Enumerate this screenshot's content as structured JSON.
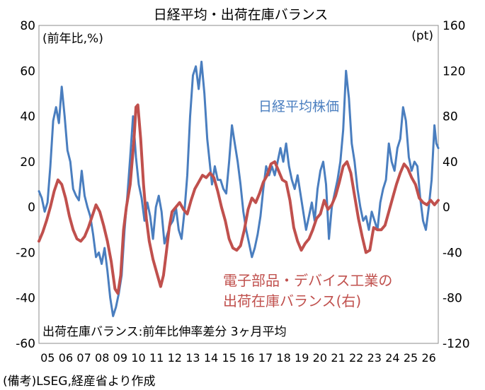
{
  "chart_data": {
    "type": "line",
    "title": "日経平均・出荷在庫バランス",
    "left_unit_label": "(前年比,%)",
    "right_unit_label": "(pt)",
    "left_axis": {
      "range": [
        -60,
        80
      ],
      "ticks": [
        "80",
        "60",
        "40",
        "20",
        "0",
        "-20",
        "-40",
        "-60"
      ]
    },
    "right_axis": {
      "range": [
        -120,
        160
      ],
      "ticks": [
        "160",
        "120",
        "80",
        "40",
        "0",
        "-40",
        "-80",
        "-120"
      ]
    },
    "x_axis": {
      "range": [
        2005,
        2026
      ],
      "ticks": [
        "05",
        "06",
        "07",
        "08",
        "09",
        "10",
        "11",
        "12",
        "13",
        "14",
        "15",
        "16",
        "17",
        "18",
        "19",
        "20",
        "21",
        "22",
        "23",
        "24",
        "25",
        "26"
      ]
    },
    "grid": false,
    "series": [
      {
        "name": "日経平均株価",
        "axis": "left",
        "color": "#4a7ebf",
        "points": [
          [
            2005.0,
            7
          ],
          [
            2005.15,
            4
          ],
          [
            2005.3,
            -2
          ],
          [
            2005.45,
            2
          ],
          [
            2005.6,
            18
          ],
          [
            2005.75,
            38
          ],
          [
            2005.9,
            44
          ],
          [
            2006.05,
            37
          ],
          [
            2006.2,
            53
          ],
          [
            2006.35,
            40
          ],
          [
            2006.5,
            25
          ],
          [
            2006.65,
            20
          ],
          [
            2006.8,
            8
          ],
          [
            2006.95,
            5
          ],
          [
            2007.1,
            3
          ],
          [
            2007.25,
            16
          ],
          [
            2007.4,
            5
          ],
          [
            2007.55,
            0
          ],
          [
            2007.7,
            -4
          ],
          [
            2007.85,
            -12
          ],
          [
            2008.0,
            -22
          ],
          [
            2008.15,
            -20
          ],
          [
            2008.3,
            -25
          ],
          [
            2008.45,
            -18
          ],
          [
            2008.6,
            -28
          ],
          [
            2008.75,
            -40
          ],
          [
            2008.9,
            -48
          ],
          [
            2009.05,
            -44
          ],
          [
            2009.2,
            -38
          ],
          [
            2009.35,
            -30
          ],
          [
            2009.5,
            -10
          ],
          [
            2009.65,
            5
          ],
          [
            2009.8,
            22
          ],
          [
            2009.95,
            40
          ],
          [
            2010.1,
            22
          ],
          [
            2010.25,
            10
          ],
          [
            2010.4,
            4
          ],
          [
            2010.55,
            -6
          ],
          [
            2010.7,
            2
          ],
          [
            2010.85,
            -4
          ],
          [
            2011.0,
            -14
          ],
          [
            2011.15,
            0
          ],
          [
            2011.3,
            5
          ],
          [
            2011.45,
            -2
          ],
          [
            2011.6,
            -16
          ],
          [
            2011.75,
            -12
          ],
          [
            2011.9,
            -8
          ],
          [
            2012.05,
            -6
          ],
          [
            2012.2,
            0
          ],
          [
            2012.35,
            -10
          ],
          [
            2012.5,
            -14
          ],
          [
            2012.65,
            -2
          ],
          [
            2012.8,
            14
          ],
          [
            2012.95,
            40
          ],
          [
            2013.1,
            58
          ],
          [
            2013.25,
            62
          ],
          [
            2013.4,
            52
          ],
          [
            2013.55,
            64
          ],
          [
            2013.7,
            50
          ],
          [
            2013.85,
            30
          ],
          [
            2013.95,
            22
          ],
          [
            2014.1,
            10
          ],
          [
            2014.25,
            18
          ],
          [
            2014.4,
            12
          ],
          [
            2014.55,
            12
          ],
          [
            2014.7,
            8
          ],
          [
            2014.85,
            6
          ],
          [
            2015.0,
            20
          ],
          [
            2015.15,
            36
          ],
          [
            2015.3,
            28
          ],
          [
            2015.45,
            20
          ],
          [
            2015.6,
            10
          ],
          [
            2015.75,
            -2
          ],
          [
            2015.9,
            -10
          ],
          [
            2016.05,
            -16
          ],
          [
            2016.2,
            -22
          ],
          [
            2016.35,
            -18
          ],
          [
            2016.5,
            -12
          ],
          [
            2016.65,
            -4
          ],
          [
            2016.8,
            8
          ],
          [
            2016.95,
            18
          ],
          [
            2017.1,
            14
          ],
          [
            2017.25,
            18
          ],
          [
            2017.4,
            14
          ],
          [
            2017.55,
            20
          ],
          [
            2017.7,
            26
          ],
          [
            2017.85,
            20
          ],
          [
            2018.0,
            28
          ],
          [
            2018.15,
            18
          ],
          [
            2018.3,
            12
          ],
          [
            2018.45,
            8
          ],
          [
            2018.6,
            14
          ],
          [
            2018.75,
            6
          ],
          [
            2018.9,
            -2
          ],
          [
            2019.05,
            -10
          ],
          [
            2019.2,
            -4
          ],
          [
            2019.35,
            2
          ],
          [
            2019.5,
            -6
          ],
          [
            2019.65,
            8
          ],
          [
            2019.8,
            16
          ],
          [
            2019.95,
            20
          ],
          [
            2020.1,
            10
          ],
          [
            2020.25,
            -14
          ],
          [
            2020.4,
            0
          ],
          [
            2020.55,
            6
          ],
          [
            2020.7,
            12
          ],
          [
            2020.85,
            20
          ],
          [
            2021.0,
            34
          ],
          [
            2021.15,
            60
          ],
          [
            2021.3,
            48
          ],
          [
            2021.45,
            28
          ],
          [
            2021.6,
            20
          ],
          [
            2021.75,
            8
          ],
          [
            2021.9,
            0
          ],
          [
            2022.05,
            -6
          ],
          [
            2022.2,
            -4
          ],
          [
            2022.35,
            -10
          ],
          [
            2022.5,
            -2
          ],
          [
            2022.65,
            -6
          ],
          [
            2022.8,
            -10
          ],
          [
            2022.95,
            2
          ],
          [
            2023.1,
            8
          ],
          [
            2023.25,
            12
          ],
          [
            2023.4,
            28
          ],
          [
            2023.55,
            20
          ],
          [
            2023.7,
            16
          ],
          [
            2023.85,
            26
          ],
          [
            2024.0,
            30
          ],
          [
            2024.15,
            44
          ],
          [
            2024.3,
            38
          ],
          [
            2024.45,
            22
          ],
          [
            2024.6,
            16
          ],
          [
            2024.75,
            20
          ],
          [
            2024.9,
            18
          ],
          [
            2025.05,
            4
          ],
          [
            2025.2,
            -6
          ],
          [
            2025.35,
            -10
          ],
          [
            2025.5,
            0
          ],
          [
            2025.65,
            12
          ],
          [
            2025.8,
            36
          ],
          [
            2025.9,
            28
          ],
          [
            2026.0,
            26
          ]
        ]
      },
      {
        "name": "電子部品・デバイス工業の出荷在庫バランス(右)",
        "axis": "right",
        "color": "#c0504d",
        "points": [
          [
            2005.0,
            -30
          ],
          [
            2005.2,
            -22
          ],
          [
            2005.4,
            -12
          ],
          [
            2005.6,
            0
          ],
          [
            2005.8,
            14
          ],
          [
            2006.0,
            24
          ],
          [
            2006.2,
            20
          ],
          [
            2006.4,
            8
          ],
          [
            2006.6,
            -8
          ],
          [
            2006.8,
            -20
          ],
          [
            2007.0,
            -28
          ],
          [
            2007.2,
            -30
          ],
          [
            2007.4,
            -26
          ],
          [
            2007.6,
            -18
          ],
          [
            2007.8,
            -8
          ],
          [
            2008.0,
            2
          ],
          [
            2008.2,
            -4
          ],
          [
            2008.4,
            -16
          ],
          [
            2008.6,
            -30
          ],
          [
            2008.8,
            -48
          ],
          [
            2009.0,
            -72
          ],
          [
            2009.15,
            -76
          ],
          [
            2009.3,
            -60
          ],
          [
            2009.45,
            -20
          ],
          [
            2009.6,
            0
          ],
          [
            2009.8,
            20
          ],
          [
            2010.0,
            60
          ],
          [
            2010.1,
            88
          ],
          [
            2010.2,
            90
          ],
          [
            2010.35,
            60
          ],
          [
            2010.5,
            20
          ],
          [
            2010.65,
            -10
          ],
          [
            2010.8,
            -30
          ],
          [
            2011.0,
            -46
          ],
          [
            2011.2,
            -58
          ],
          [
            2011.4,
            -70
          ],
          [
            2011.55,
            -60
          ],
          [
            2011.7,
            -40
          ],
          [
            2011.85,
            -18
          ],
          [
            2012.0,
            -4
          ],
          [
            2012.2,
            0
          ],
          [
            2012.4,
            4
          ],
          [
            2012.6,
            -2
          ],
          [
            2012.8,
            -6
          ],
          [
            2013.0,
            6
          ],
          [
            2013.2,
            16
          ],
          [
            2013.4,
            22
          ],
          [
            2013.6,
            28
          ],
          [
            2013.8,
            26
          ],
          [
            2014.0,
            30
          ],
          [
            2014.2,
            26
          ],
          [
            2014.4,
            14
          ],
          [
            2014.6,
            0
          ],
          [
            2014.8,
            -12
          ],
          [
            2015.0,
            -28
          ],
          [
            2015.2,
            -36
          ],
          [
            2015.4,
            -38
          ],
          [
            2015.6,
            -34
          ],
          [
            2015.8,
            -20
          ],
          [
            2016.0,
            -2
          ],
          [
            2016.2,
            8
          ],
          [
            2016.4,
            4
          ],
          [
            2016.6,
            12
          ],
          [
            2016.8,
            22
          ],
          [
            2017.0,
            28
          ],
          [
            2017.2,
            38
          ],
          [
            2017.4,
            40
          ],
          [
            2017.6,
            32
          ],
          [
            2017.8,
            24
          ],
          [
            2018.0,
            22
          ],
          [
            2018.2,
            6
          ],
          [
            2018.4,
            -18
          ],
          [
            2018.6,
            -30
          ],
          [
            2018.8,
            -38
          ],
          [
            2019.0,
            -32
          ],
          [
            2019.2,
            -28
          ],
          [
            2019.4,
            -20
          ],
          [
            2019.6,
            -10
          ],
          [
            2019.8,
            -6
          ],
          [
            2020.0,
            6
          ],
          [
            2020.2,
            -2
          ],
          [
            2020.4,
            2
          ],
          [
            2020.6,
            10
          ],
          [
            2020.8,
            22
          ],
          [
            2021.0,
            36
          ],
          [
            2021.2,
            40
          ],
          [
            2021.4,
            30
          ],
          [
            2021.6,
            10
          ],
          [
            2021.8,
            -10
          ],
          [
            2022.0,
            -26
          ],
          [
            2022.2,
            -40
          ],
          [
            2022.4,
            -38
          ],
          [
            2022.6,
            -18
          ],
          [
            2022.8,
            -20
          ],
          [
            2023.0,
            -20
          ],
          [
            2023.2,
            -16
          ],
          [
            2023.4,
            -4
          ],
          [
            2023.6,
            8
          ],
          [
            2023.8,
            20
          ],
          [
            2024.0,
            30
          ],
          [
            2024.2,
            38
          ],
          [
            2024.4,
            34
          ],
          [
            2024.6,
            26
          ],
          [
            2024.8,
            20
          ],
          [
            2025.0,
            8
          ],
          [
            2025.2,
            4
          ],
          [
            2025.4,
            2
          ],
          [
            2025.6,
            6
          ],
          [
            2025.8,
            2
          ],
          [
            2026.0,
            6
          ]
        ]
      }
    ],
    "annotations": {
      "blue_label": "日経平均株価",
      "red_label_line1": "電子部品・デバイス工業の",
      "red_label_line2": "出荷在庫バランス(右)",
      "note": "出荷在庫バランス:前年比伸率差分 3ヶ月平均"
    },
    "source": "(備考)LSEG,経産省より作成"
  }
}
